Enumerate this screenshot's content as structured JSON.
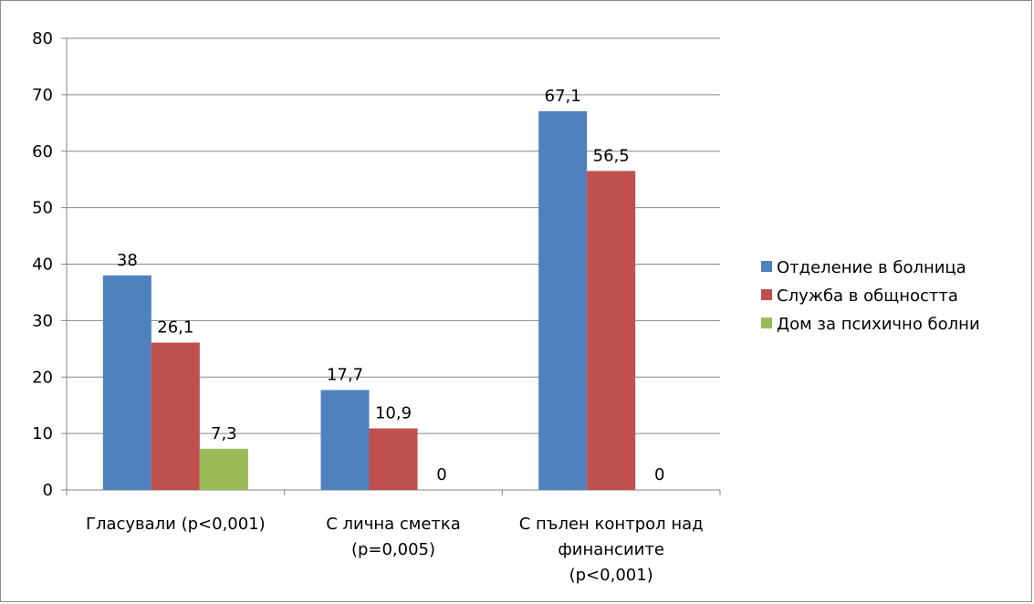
{
  "chart_data": {
    "type": "bar",
    "categories": [
      [
        "Гласували (p<0,001)"
      ],
      [
        "С лична сметка",
        "(p=0,005)"
      ],
      [
        "С пълен контрол над",
        "финансиите",
        "(p<0,001)"
      ]
    ],
    "series": [
      {
        "name": "Отделение в болница",
        "color": "#4F81BD",
        "values": [
          38,
          17.7,
          67.1
        ],
        "labels": [
          "38",
          "17,7",
          "67,1"
        ]
      },
      {
        "name": "Служба в общността",
        "color": "#C0504D",
        "values": [
          26.1,
          10.9,
          56.5
        ],
        "labels": [
          "26,1",
          "10,9",
          "56,5"
        ]
      },
      {
        "name": "Дом за психично болни",
        "color": "#9BBB59",
        "values": [
          7.3,
          0,
          0
        ],
        "labels": [
          "7,3",
          "0",
          "0"
        ]
      }
    ],
    "ylim": [
      0,
      80
    ],
    "yticks": [
      0,
      10,
      20,
      30,
      40,
      50,
      60,
      70,
      80
    ],
    "grid": true,
    "legend_position": "right"
  }
}
